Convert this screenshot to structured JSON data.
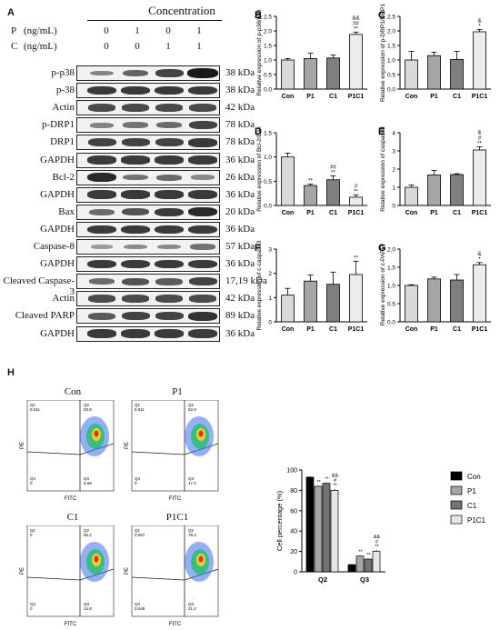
{
  "panel_a": {
    "letter": "A",
    "concentration_title": "Concentration",
    "rows": [
      {
        "label": "P",
        "unit": "(ng/mL)",
        "values": [
          "0",
          "1",
          "0",
          "1"
        ]
      },
      {
        "label": "C",
        "unit": "(ng/mL)",
        "values": [
          "0",
          "0",
          "1",
          "1"
        ]
      }
    ],
    "blots": [
      {
        "name": "p-p38",
        "size": "38 kDa",
        "intensity": [
          0.35,
          0.55,
          0.75,
          1.0
        ]
      },
      {
        "name": "p-38",
        "size": "38 kDa",
        "intensity": [
          0.8,
          0.8,
          0.8,
          0.8
        ]
      },
      {
        "name": "Actin",
        "size": "42 kDa",
        "intensity": [
          0.7,
          0.7,
          0.7,
          0.7
        ]
      },
      {
        "name": "p-DRP1",
        "size": "78 kDa",
        "intensity": [
          0.35,
          0.45,
          0.5,
          0.75
        ]
      },
      {
        "name": "DRP1",
        "size": "78 kDa",
        "intensity": [
          0.75,
          0.75,
          0.75,
          0.8
        ]
      },
      {
        "name": "GAPDH",
        "size": "36 kDa",
        "intensity": [
          0.8,
          0.8,
          0.8,
          0.8
        ]
      },
      {
        "name": "Bcl-2",
        "size": "26 kDa",
        "intensity": [
          0.9,
          0.45,
          0.5,
          0.3
        ]
      },
      {
        "name": "GAPDH",
        "size": "36 kDa",
        "intensity": [
          0.8,
          0.8,
          0.8,
          0.8
        ]
      },
      {
        "name": "Bax",
        "size": "20 kDa",
        "intensity": [
          0.5,
          0.65,
          0.8,
          0.9
        ]
      },
      {
        "name": "GAPDH",
        "size": "36 kDa",
        "intensity": [
          0.8,
          0.8,
          0.8,
          0.8
        ]
      },
      {
        "name": "Caspase-8",
        "size": "57 kDa",
        "intensity": [
          0.2,
          0.3,
          0.3,
          0.45
        ]
      },
      {
        "name": "GAPDH",
        "size": "36 kDa",
        "intensity": [
          0.8,
          0.8,
          0.8,
          0.8
        ]
      },
      {
        "name": "Cleaved Caspase-3",
        "size": "17,19 kDa",
        "intensity": [
          0.5,
          0.65,
          0.6,
          0.75
        ]
      },
      {
        "name": "Actin",
        "size": "42 kDa",
        "intensity": [
          0.7,
          0.7,
          0.7,
          0.7
        ]
      },
      {
        "name": "Cleaved PARP",
        "size": "89 kDa",
        "intensity": [
          0.6,
          0.75,
          0.75,
          0.85
        ]
      },
      {
        "name": "GAPDH",
        "size": "36 kDa",
        "intensity": [
          0.8,
          0.8,
          0.8,
          0.8
        ]
      }
    ]
  },
  "panel_h": {
    "letter": "H",
    "flow_plots": [
      {
        "title": "Con",
        "q1": "0.011",
        "q2": "93.8",
        "q3": "6.08",
        "q4": "0"
      },
      {
        "title": "P1",
        "q1": "0.011",
        "q2": "82.8",
        "q3": "17.2",
        "q4": "0"
      },
      {
        "title": "C1",
        "q1": "0",
        "q2": "85.2",
        "q3": "14.8",
        "q4": "0"
      },
      {
        "title": "P1C1",
        "q1": "0.087",
        "q2": "78.4",
        "q3": "21.4",
        "q4": "0.048"
      }
    ],
    "quadrant_names": [
      "Q1",
      "Q2",
      "Q3",
      "Q4"
    ],
    "x_axis": "FITC",
    "y_axis": "PE"
  },
  "chart_data": [
    {
      "panel": "B",
      "type": "bar",
      "categories": [
        "Con",
        "P1",
        "C1",
        "P1C1"
      ],
      "values": [
        1.0,
        1.05,
        1.07,
        1.88
      ],
      "errors": [
        0.05,
        0.18,
        0.1,
        0.08
      ],
      "annotations": [
        "",
        "",
        "",
        "&&\n##\n**"
      ],
      "ylabel": "Relative expression of p-p38/p38",
      "ylim": [
        0,
        2.5
      ],
      "yticks": [
        "0.0",
        "0.5",
        "1.0",
        "1.5",
        "2.0",
        "2.5"
      ],
      "colors": [
        "#d9d9d9",
        "#a6a6a6",
        "#7f7f7f",
        "#ececec"
      ]
    },
    {
      "panel": "C",
      "type": "bar",
      "categories": [
        "Con",
        "P1",
        "C1",
        "P1C1"
      ],
      "values": [
        1.0,
        1.15,
        1.02,
        1.97
      ],
      "errors": [
        0.3,
        0.12,
        0.28,
        0.08
      ],
      "annotations": [
        "",
        "",
        "",
        "&\n*"
      ],
      "ylabel": "Relative expression of p-DRP1/DRP1",
      "ylim": [
        0,
        2.5
      ],
      "yticks": [
        "0.0",
        "0.5",
        "1.0",
        "1.5",
        "2.0",
        "2.5"
      ],
      "colors": [
        "#d9d9d9",
        "#a6a6a6",
        "#7f7f7f",
        "#ececec"
      ]
    },
    {
      "panel": "D",
      "type": "bar",
      "categories": [
        "Con",
        "P1",
        "C1",
        "P1C1"
      ],
      "values": [
        1.0,
        0.41,
        0.53,
        0.17
      ],
      "errors": [
        0.08,
        0.03,
        0.08,
        0.05
      ],
      "annotations": [
        "",
        "**",
        "##\n**",
        "#\n**"
      ],
      "ylabel": "Relative expression of Bcl-2/Bax",
      "ylim": [
        0,
        1.5
      ],
      "yticks": [
        "0.0",
        "0.5",
        "1.0",
        "1.5"
      ],
      "colors": [
        "#d9d9d9",
        "#a6a6a6",
        "#7f7f7f",
        "#ececec"
      ]
    },
    {
      "panel": "E",
      "type": "bar",
      "categories": [
        "Con",
        "P1",
        "C1",
        "P1C1"
      ],
      "values": [
        1.0,
        1.68,
        1.7,
        3.05
      ],
      "errors": [
        0.12,
        0.25,
        0.05,
        0.18
      ],
      "annotations": [
        "",
        "",
        "",
        "&\n#\n**"
      ],
      "ylabel": "Relative expression of caspase8",
      "ylim": [
        0,
        4
      ],
      "yticks": [
        "0",
        "1",
        "2",
        "3",
        "4"
      ],
      "colors": [
        "#d9d9d9",
        "#a6a6a6",
        "#7f7f7f",
        "#ececec"
      ]
    },
    {
      "panel": "F",
      "type": "bar",
      "categories": [
        "Con",
        "P1",
        "C1",
        "P1C1"
      ],
      "values": [
        1.1,
        1.68,
        1.55,
        1.95
      ],
      "errors": [
        0.28,
        0.25,
        0.5,
        0.55
      ],
      "annotations": [
        "",
        "",
        "",
        "**"
      ],
      "ylabel": "Relative expression of c-caspase3",
      "ylim": [
        0,
        3
      ],
      "yticks": [
        "0",
        "1",
        "2",
        "3"
      ],
      "colors": [
        "#d9d9d9",
        "#a6a6a6",
        "#7f7f7f",
        "#ececec"
      ]
    },
    {
      "panel": "G",
      "type": "bar",
      "categories": [
        "Con",
        "P1",
        "C1",
        "P1C1"
      ],
      "values": [
        1.0,
        1.18,
        1.15,
        1.57
      ],
      "errors": [
        0.02,
        0.05,
        0.15,
        0.06
      ],
      "annotations": [
        "",
        "",
        "",
        "&\n*"
      ],
      "ylabel": "Relative expression of c-PARP",
      "ylim": [
        0,
        2.0
      ],
      "yticks": [
        "0.0",
        "0.5",
        "1.0",
        "1.5",
        "2.0"
      ],
      "colors": [
        "#d9d9d9",
        "#a6a6a6",
        "#7f7f7f",
        "#ececec"
      ]
    },
    {
      "panel": "H",
      "type": "bar",
      "categories": [
        "Q2",
        "Q3"
      ],
      "series": [
        {
          "name": "Con",
          "values": [
            93,
            7
          ],
          "errors": [
            0.8,
            0.8
          ],
          "color": "#000000",
          "annotations": [
            "",
            ""
          ]
        },
        {
          "name": "P1",
          "values": [
            84,
            15.5
          ],
          "errors": [
            0.8,
            0.8
          ],
          "color": "#a6a6a6",
          "annotations": [
            "**",
            "**"
          ]
        },
        {
          "name": "C1",
          "values": [
            87,
            12.5
          ],
          "errors": [
            0.8,
            0.8
          ],
          "color": "#737373",
          "annotations": [
            "**",
            "**"
          ]
        },
        {
          "name": "P1C1",
          "values": [
            80,
            20
          ],
          "errors": [
            1.5,
            1.5
          ],
          "color": "#e6e6e6",
          "annotations": [
            "&&\n#\n**",
            "&&\n#\n**"
          ]
        }
      ],
      "ylabel": "Cell percentage (%)",
      "ylim": [
        0,
        100
      ],
      "yticks": [
        "0",
        "20",
        "40",
        "60",
        "80",
        "100"
      ],
      "legend_position": "right"
    }
  ]
}
